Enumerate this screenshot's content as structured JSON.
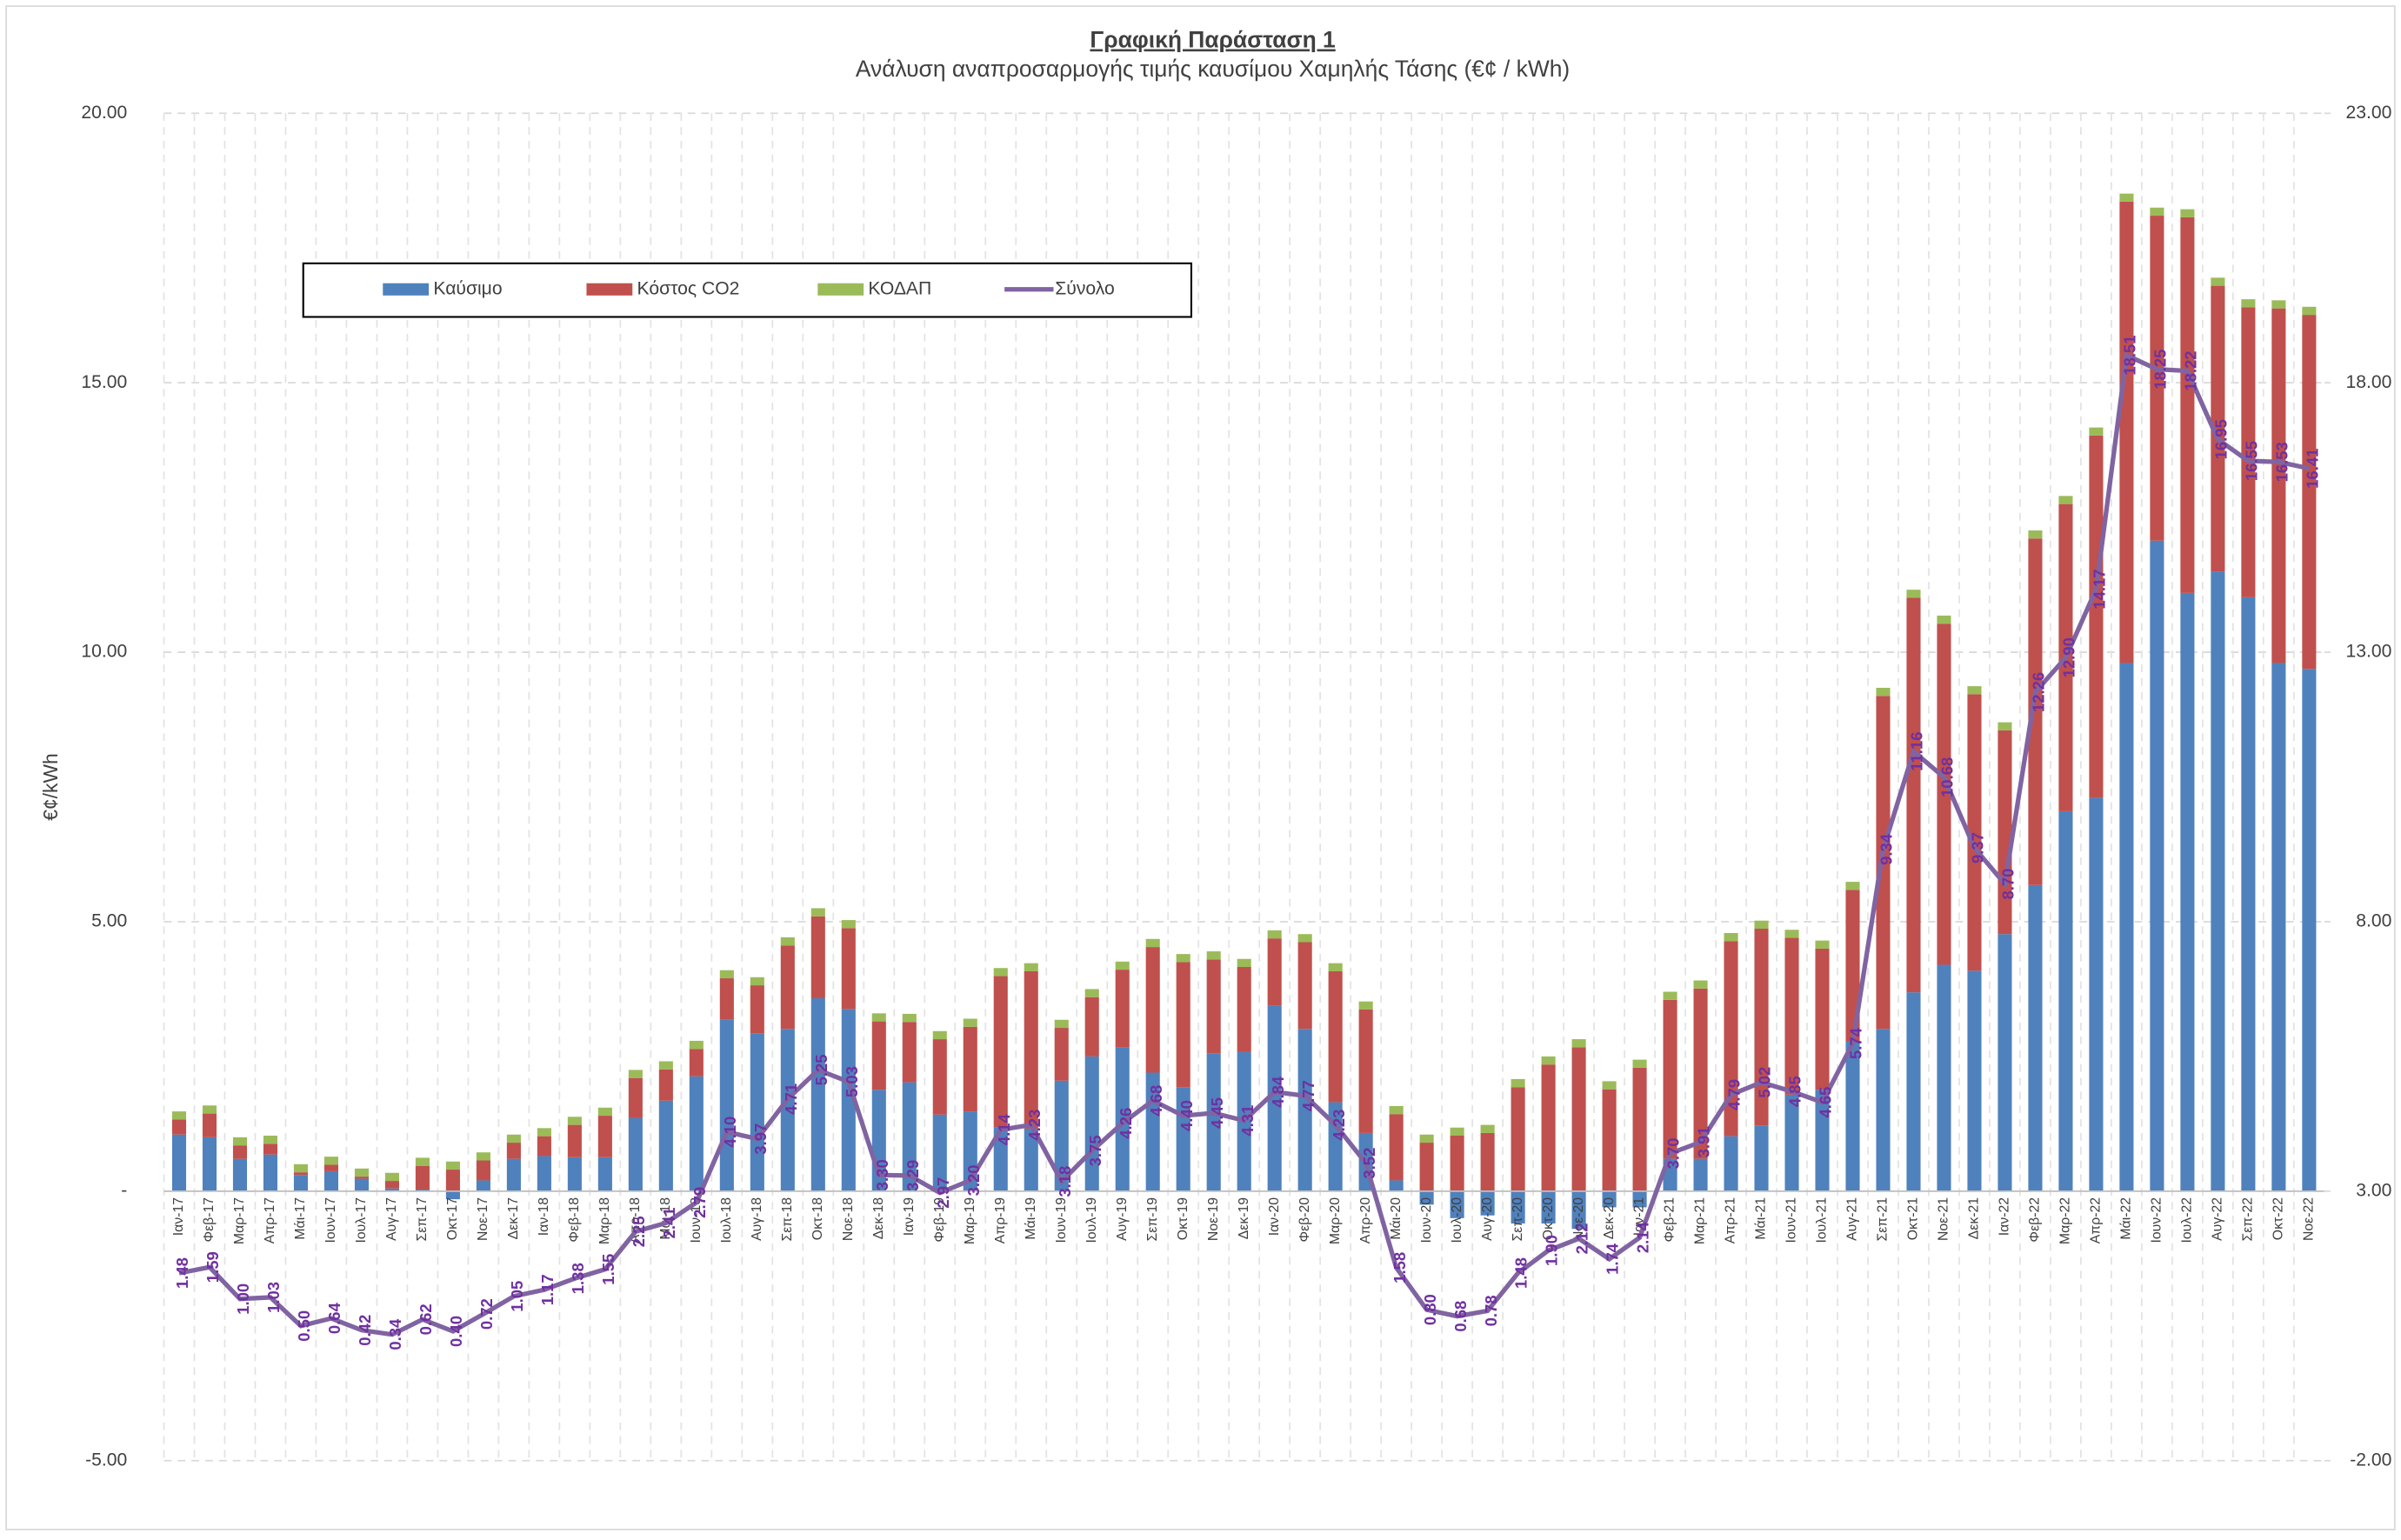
{
  "chart_data": {
    "type": "bar",
    "title": "Γραφική Παράσταση 1",
    "subtitle": "Ανάλυση αναπροσαρμογής τιμής καυσίμου Χαμηλής Τάσης (€¢ / kWh)",
    "y_label": "€¢/kWh",
    "stacked": true,
    "grid": true,
    "legend": "top-left",
    "categories": [
      "Ιαν-17",
      "Φεβ-17",
      "Μαρ-17",
      "Απρ-17",
      "Μάι-17",
      "Ιουν-17",
      "Ιουλ-17",
      "Αυγ-17",
      "Σεπ-17",
      "Οκτ-17",
      "Νοε-17",
      "Δεκ-17",
      "Ιαν-18",
      "Φεβ-18",
      "Μαρ-18",
      "Απρ-18",
      "Μάι-18",
      "Ιουν-18",
      "Ιουλ-18",
      "Αυγ-18",
      "Σεπ-18",
      "Οκτ-18",
      "Νοε-18",
      "Δεκ-18",
      "Ιαν-19",
      "Φεβ-19",
      "Μαρ-19",
      "Απρ-19",
      "Μάι-19",
      "Ιουν-19",
      "Ιουλ-19",
      "Αυγ-19",
      "Σεπ-19",
      "Οκτ-19",
      "Νοε-19",
      "Δεκ-19",
      "Ιαν-20",
      "Φεβ-20",
      "Μαρ-20",
      "Απρ-20",
      "Μάι-20",
      "Ιουν-20",
      "Ιουλ-20",
      "Αυγ-20",
      "Σεπ-20",
      "Οκτ-20",
      "Νοε-20",
      "Δεκ-20",
      "Ιαν-21",
      "Φεβ-21",
      "Μαρ-21",
      "Απρ-21",
      "Μάι-21",
      "Ιουν-21",
      "Ιουλ-21",
      "Αυγ-21",
      "Σεπ-21",
      "Οκτ-21",
      "Νοε-21",
      "Δεκ-21",
      "Ιαν-22",
      "Φεβ-22",
      "Μαρ-22",
      "Απρ-22",
      "Μάι-22",
      "Ιουν-22",
      "Ιουλ-22",
      "Αυγ-22",
      "Σεπ-22",
      "Οκτ-22",
      "Νοε-22"
    ],
    "series": [
      {
        "name": "Καύσιμο",
        "color": "#4f81bd",
        "values": [
          1.05,
          1.0,
          0.6,
          0.68,
          0.3,
          0.37,
          0.23,
          0.05,
          0.03,
          -0.15,
          0.2,
          0.6,
          0.65,
          0.63,
          0.63,
          1.36,
          1.68,
          2.13,
          3.18,
          2.93,
          3.01,
          3.58,
          3.38,
          1.88,
          2.02,
          1.42,
          1.48,
          1.19,
          1.16,
          2.05,
          2.5,
          2.67,
          2.2,
          1.93,
          2.56,
          2.58,
          3.44,
          3.01,
          1.65,
          1.08,
          0.2,
          -0.25,
          -0.5,
          -0.45,
          -0.6,
          -0.6,
          -0.7,
          -0.3,
          -0.3,
          0.6,
          0.6,
          1.02,
          1.22,
          1.79,
          1.88,
          2.78,
          3.01,
          3.69,
          4.2,
          4.09,
          4.77,
          5.68,
          7.05,
          7.3,
          9.8,
          12.07,
          11.1,
          11.5,
          11.02,
          9.8,
          9.69
        ]
      },
      {
        "name": "Κόστος CO2",
        "color": "#c0504d",
        "values": [
          0.28,
          0.44,
          0.25,
          0.2,
          0.05,
          0.12,
          0.04,
          0.14,
          0.44,
          0.4,
          0.37,
          0.3,
          0.37,
          0.6,
          0.77,
          0.74,
          0.58,
          0.51,
          0.77,
          0.89,
          1.55,
          1.52,
          1.5,
          1.27,
          1.12,
          1.4,
          1.57,
          2.8,
          2.92,
          0.98,
          1.1,
          1.44,
          2.33,
          2.32,
          1.74,
          1.58,
          1.25,
          1.61,
          2.43,
          2.29,
          1.23,
          0.9,
          1.03,
          1.08,
          1.93,
          2.35,
          2.67,
          1.89,
          2.29,
          2.95,
          3.16,
          3.62,
          3.65,
          2.91,
          2.62,
          2.81,
          6.18,
          7.32,
          6.33,
          5.13,
          3.78,
          6.43,
          5.7,
          6.72,
          8.56,
          6.03,
          6.97,
          5.3,
          5.38,
          6.58,
          6.57
        ]
      },
      {
        "name": "ΚΟΔΑΠ",
        "color": "#9bbb59",
        "values": [
          0.15,
          0.15,
          0.15,
          0.15,
          0.15,
          0.15,
          0.15,
          0.15,
          0.15,
          0.15,
          0.15,
          0.15,
          0.15,
          0.15,
          0.15,
          0.15,
          0.15,
          0.15,
          0.15,
          0.15,
          0.15,
          0.15,
          0.15,
          0.15,
          0.15,
          0.15,
          0.15,
          0.15,
          0.15,
          0.15,
          0.15,
          0.15,
          0.15,
          0.15,
          0.15,
          0.15,
          0.15,
          0.15,
          0.15,
          0.15,
          0.15,
          0.15,
          0.15,
          0.15,
          0.15,
          0.15,
          0.15,
          0.15,
          0.15,
          0.15,
          0.15,
          0.15,
          0.15,
          0.15,
          0.15,
          0.15,
          0.15,
          0.15,
          0.15,
          0.15,
          0.15,
          0.15,
          0.15,
          0.15,
          0.15,
          0.15,
          0.15,
          0.15,
          0.15,
          0.15,
          0.15
        ]
      },
      {
        "name": "Σύνολο",
        "color": "#8064a2",
        "axis": "y2",
        "type": "line",
        "values": [
          1.48,
          1.59,
          1.0,
          1.03,
          0.5,
          0.64,
          0.42,
          0.34,
          0.62,
          0.4,
          0.72,
          1.05,
          1.17,
          1.38,
          1.55,
          2.25,
          2.41,
          2.79,
          4.1,
          3.97,
          4.71,
          5.25,
          5.03,
          3.3,
          3.29,
          2.97,
          3.2,
          4.14,
          4.23,
          3.18,
          3.75,
          4.26,
          4.68,
          4.4,
          4.45,
          4.31,
          4.84,
          4.77,
          4.23,
          3.52,
          1.58,
          0.8,
          0.68,
          0.78,
          1.48,
          1.9,
          2.12,
          1.74,
          2.14,
          3.7,
          3.91,
          4.79,
          5.02,
          4.85,
          4.65,
          5.74,
          9.34,
          11.16,
          10.68,
          9.37,
          8.7,
          12.26,
          12.9,
          14.17,
          18.51,
          18.25,
          18.22,
          16.95,
          16.55,
          16.53,
          16.41
        ],
        "value_labels": [
          "1.48",
          "1.59",
          "1.00",
          "1.03",
          "0.50",
          "0.64",
          "0.42",
          "0.34",
          "0.62",
          "0.40",
          "0.72",
          "1.05",
          "1.17",
          "1.38",
          "1.55",
          "2.25",
          "2.41",
          "2.79",
          "4.10",
          "3.97",
          "4.71",
          "5.25",
          "5.03",
          "3.30",
          "3.29",
          "2.97",
          "3.20",
          "4.14",
          "4.23",
          "3.18",
          "3.75",
          "4.26",
          "4.68",
          "4.40",
          "4.45",
          "4.31",
          "4.84",
          "4.77",
          "4.23",
          "3.52",
          "1.58",
          "0.80",
          "0.68",
          "0.78",
          "1.48",
          "1.90",
          "2.12",
          "1.74",
          "2.14",
          "3.70",
          "3.91",
          "4.79",
          "5.02",
          "4.85",
          "4.65",
          "5.74",
          "9.34",
          "11.16",
          "10.68",
          "9.37",
          "8.70",
          "12.26",
          "12.90",
          "14.17",
          "18.51",
          "18.25",
          "18.22",
          "16.95",
          "16.55",
          "16.53",
          "16.41"
        ]
      }
    ],
    "ylim": [
      -5,
      20
    ],
    "yticks": [
      {
        "value": -5,
        "label": "-5.00"
      },
      {
        "value": 0,
        "label": "-"
      },
      {
        "value": 5,
        "label": "5.00"
      },
      {
        "value": 10,
        "label": "10.00"
      },
      {
        "value": 15,
        "label": "15.00"
      },
      {
        "value": 20,
        "label": "20.00"
      }
    ],
    "y2lim": [
      -2,
      23
    ],
    "y2ticks": [
      {
        "value": -2,
        "label": "-2.00"
      },
      {
        "value": 3,
        "label": "3.00"
      },
      {
        "value": 8,
        "label": "8.00"
      },
      {
        "value": 13,
        "label": "13.00"
      },
      {
        "value": 18,
        "label": "18.00"
      },
      {
        "value": 23,
        "label": "23.00"
      }
    ]
  }
}
